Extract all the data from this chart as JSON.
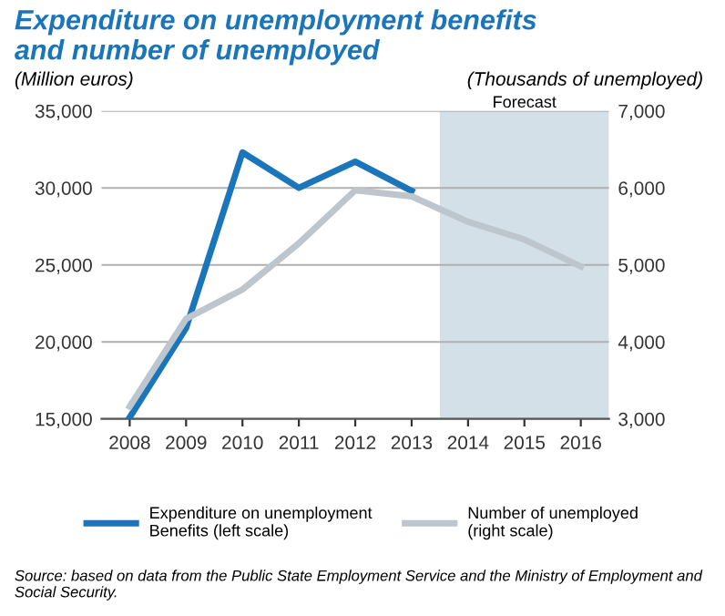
{
  "chart_data": {
    "type": "line",
    "title": "Expenditure on unemployment benefits\nand number of unemployed",
    "ylabel": "(Million euros)",
    "y2label": "(Thousands of unemployed)",
    "x": [
      2008,
      2009,
      2010,
      2011,
      2012,
      2013,
      2014,
      2015,
      2016
    ],
    "xlim": [
      2007.5,
      2016.5
    ],
    "xticks": [
      2008,
      2009,
      2010,
      2011,
      2012,
      2013,
      2014,
      2015,
      2016
    ],
    "ylim": [
      15000,
      35000
    ],
    "yticks": [
      {
        "value": 15000,
        "label": "15,000"
      },
      {
        "value": 20000,
        "label": "20,000"
      },
      {
        "value": 25000,
        "label": "25,000"
      },
      {
        "value": 30000,
        "label": "30,000"
      },
      {
        "value": 35000,
        "label": "35,000"
      }
    ],
    "y2lim": [
      3000,
      7000
    ],
    "y2ticks": [
      {
        "value": 3000,
        "label": "3,000"
      },
      {
        "value": 4000,
        "label": "4,000"
      },
      {
        "value": 5000,
        "label": "5,000"
      },
      {
        "value": 6000,
        "label": "6,000"
      },
      {
        "value": 7000,
        "label": "7,000"
      }
    ],
    "series": [
      {
        "name": "Expenditure on unemployment\nBenefits (left scale)",
        "color": "#1a75bb",
        "values": [
          15100,
          20900,
          32300,
          30000,
          31700,
          29800,
          null,
          null,
          null
        ]
      },
      {
        "name": "Number of unemployed\n(right scale)",
        "color": "#bcc6cc",
        "axis": "y2",
        "values": [
          3160,
          4300,
          4680,
          5280,
          5970,
          5890,
          5560,
          5330,
          4980
        ]
      }
    ],
    "bands": [
      {
        "axis": "x",
        "from": 2013.5,
        "to": 2016.5,
        "label": "Forecast",
        "color": "#d3e0e8"
      }
    ],
    "grid": "y",
    "legend": "bottom",
    "marker": "none",
    "line_style": "solid",
    "annotations": [
      "Source: based on data from the Public State Employment Service and the Ministry of Employment and Social Security."
    ]
  }
}
